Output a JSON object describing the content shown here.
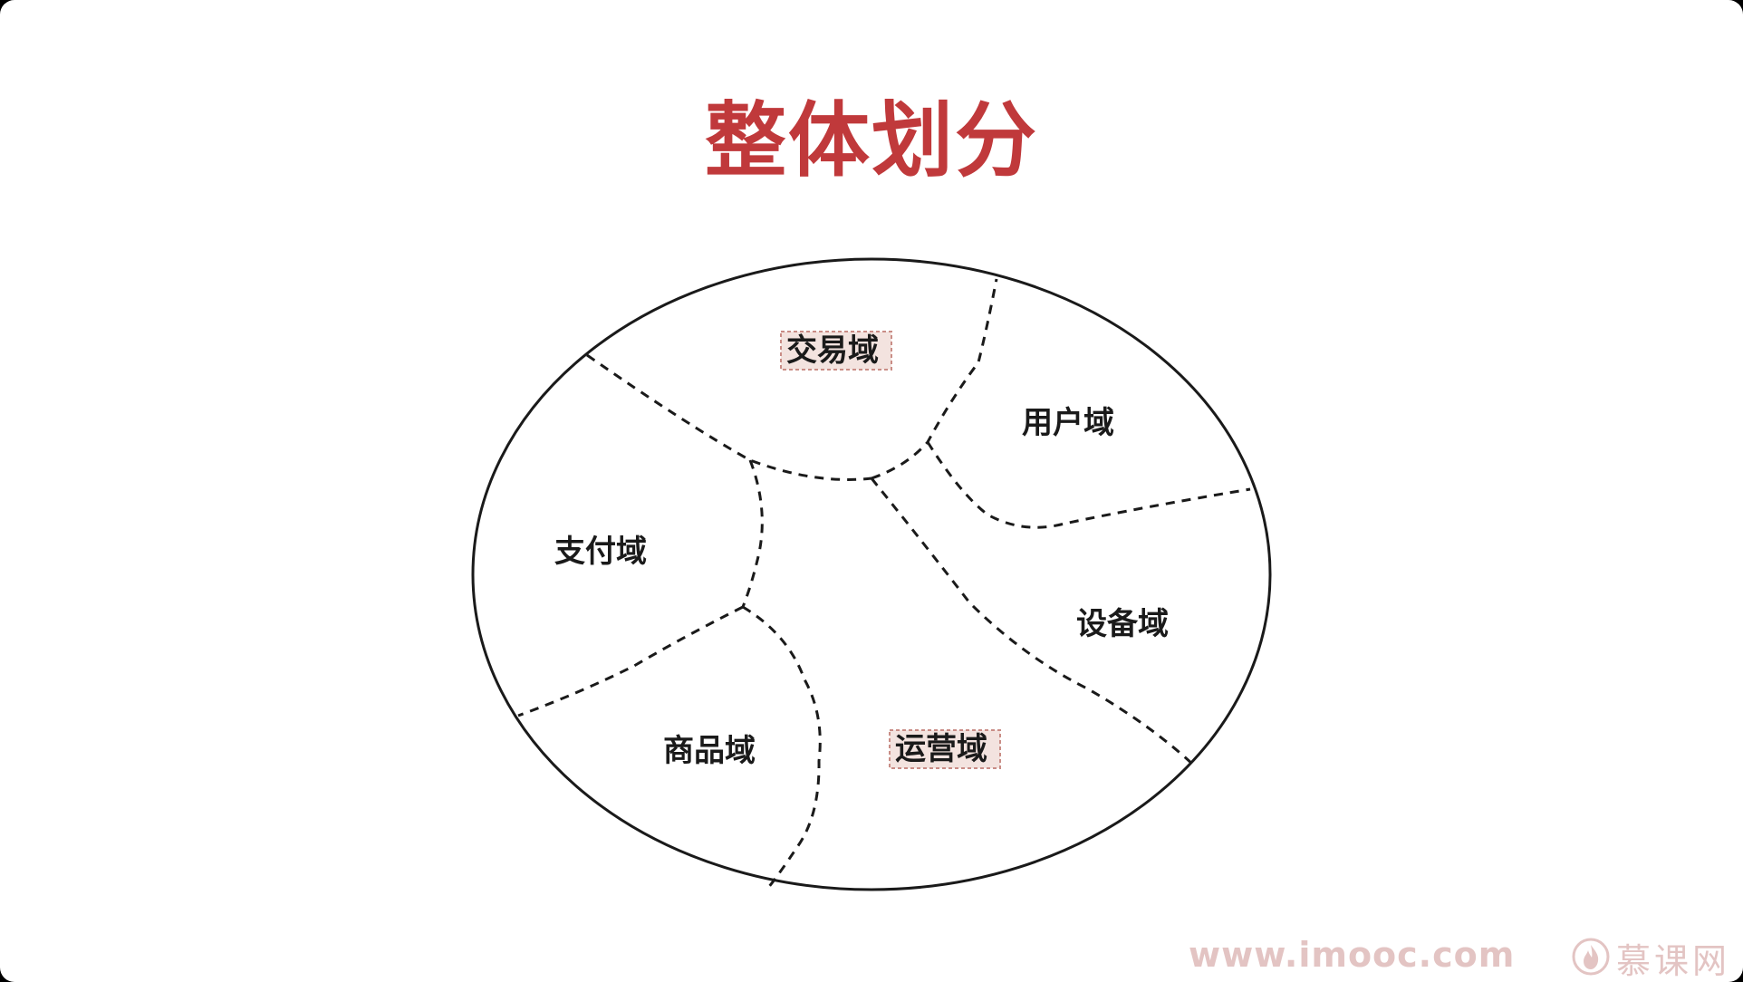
{
  "slide": {
    "title": "整体划分"
  },
  "regions": [
    {
      "key": "trade",
      "label": "交易域",
      "highlighted": true
    },
    {
      "key": "user",
      "label": "用户域",
      "highlighted": false
    },
    {
      "key": "payment",
      "label": "支付域",
      "highlighted": false
    },
    {
      "key": "device",
      "label": "设备域",
      "highlighted": false
    },
    {
      "key": "product",
      "label": "商品域",
      "highlighted": false
    },
    {
      "key": "operation",
      "label": "运营域",
      "highlighted": true
    }
  ],
  "watermark": {
    "url": "www.imooc.com",
    "brand": "慕课网",
    "icon": "flame-logo-icon"
  },
  "colors": {
    "title": "#c0393b",
    "watermark": "#e3c4c3",
    "highlight_fill": "#f3e3df",
    "highlight_border": "#c98d86",
    "outline": "#1a1a1a"
  }
}
